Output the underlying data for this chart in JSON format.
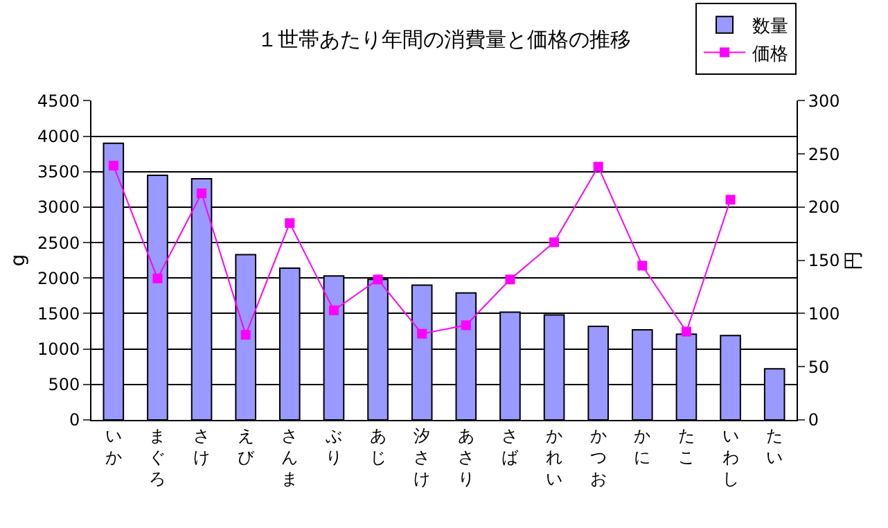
{
  "chart_data": {
    "type": "bar",
    "title": "１世帯あたり年間の消費量と価格の推移",
    "categories": [
      "いか",
      "まぐろ",
      "さけ",
      "えび",
      "さんま",
      "ぶり",
      "あじ",
      "汐さけ",
      "あさり",
      "さば",
      "かれい",
      "かつお",
      "かに",
      "たこ",
      "いわし",
      "たい"
    ],
    "series": [
      {
        "name": "数量",
        "color": "#9999ff",
        "values": [
          3900,
          3450,
          3400,
          2330,
          2140,
          2030,
          1980,
          1900,
          1790,
          1520,
          1480,
          1320,
          1270,
          1210,
          1190,
          720
        ]
      },
      {
        "name": "価格",
        "type": "line",
        "axis": "y2",
        "color": "#ff00ff",
        "marker": "square",
        "values": [
          239,
          133,
          213,
          80,
          185,
          103,
          132,
          81,
          89,
          132,
          167,
          238,
          145,
          83,
          207,
          null
        ]
      }
    ],
    "ylabel": "g",
    "y2label": "円",
    "ylim": [
      0,
      4500
    ],
    "yticks": [
      0,
      500,
      1000,
      1500,
      2000,
      2500,
      3000,
      3500,
      4000,
      4500
    ],
    "y2lim": [
      0,
      300
    ],
    "y2ticks": [
      0,
      50,
      100,
      150,
      200,
      250,
      300
    ],
    "grid": "y",
    "legend": "top right"
  }
}
